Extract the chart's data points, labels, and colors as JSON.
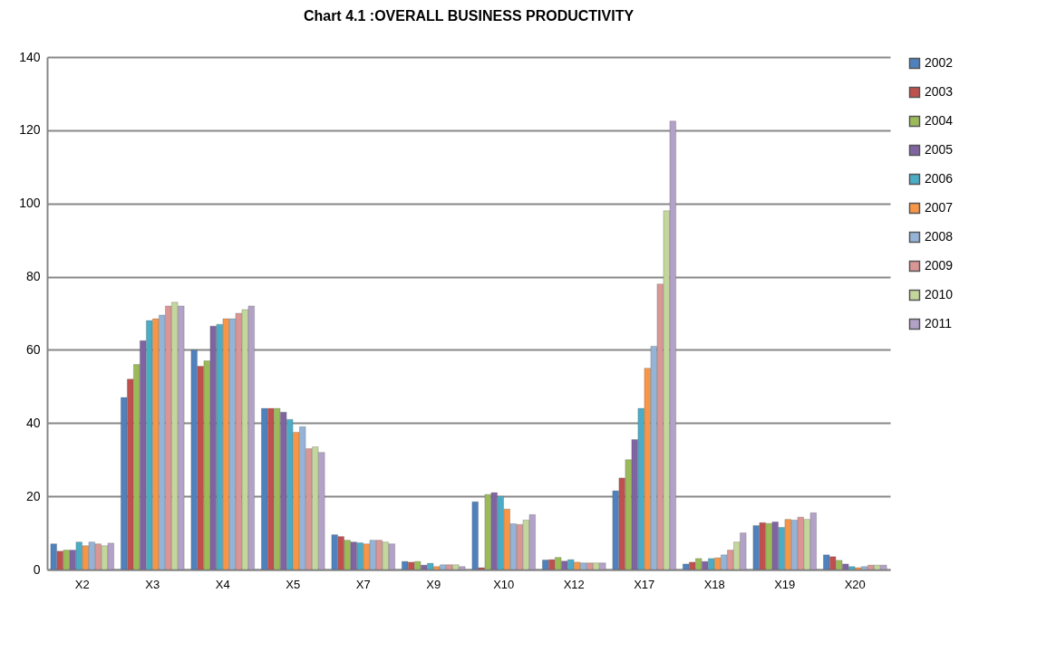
{
  "chart_data": {
    "type": "bar",
    "title": "Chart 4.1 :OVERALL BUSINESS PRODUCTIVITY",
    "categories": [
      "X2",
      "X3",
      "X4",
      "X5",
      "X7",
      "X9",
      "X10",
      "X12",
      "X17",
      "X18",
      "X19",
      "X20"
    ],
    "ylim": [
      0,
      140
    ],
    "yticks": [
      0,
      20,
      40,
      60,
      80,
      100,
      120,
      140
    ],
    "grid": "y",
    "legend": "right",
    "series": [
      {
        "name": "2002",
        "color": "#4f81bd",
        "values": [
          7,
          47,
          60,
          44,
          9.5,
          2.2,
          18.5,
          2.6,
          21.5,
          1.5,
          12,
          4
        ]
      },
      {
        "name": "2003",
        "color": "#c0504d",
        "values": [
          5,
          52,
          55.5,
          44,
          9,
          2,
          0.5,
          2.7,
          25,
          2,
          12.8,
          3.5
        ]
      },
      {
        "name": "2004",
        "color": "#9bbb59",
        "values": [
          5.3,
          56,
          57,
          44,
          8,
          2.2,
          20.5,
          3.3,
          30,
          3,
          12.6,
          2.5
        ]
      },
      {
        "name": "2005",
        "color": "#8064a2",
        "values": [
          5.3,
          62.5,
          66.5,
          43,
          7.5,
          1.2,
          21,
          2.3,
          35.5,
          2.2,
          13,
          1.5
        ]
      },
      {
        "name": "2006",
        "color": "#4bacc6",
        "values": [
          7.5,
          68,
          67,
          41,
          7.3,
          1.7,
          20,
          2.7,
          44,
          3,
          11.5,
          0.8
        ]
      },
      {
        "name": "2007",
        "color": "#f79646",
        "values": [
          6.5,
          68.5,
          68.5,
          37.5,
          7,
          0.8,
          16.5,
          2,
          55,
          3.2,
          13.7,
          0.5
        ]
      },
      {
        "name": "2008",
        "color": "#95b3d7",
        "values": [
          7.5,
          69.5,
          68.5,
          39,
          8,
          1.3,
          12.5,
          1.8,
          61,
          4,
          13.5,
          0.8
        ]
      },
      {
        "name": "2009",
        "color": "#d99694",
        "values": [
          7,
          72,
          70,
          33,
          8,
          1.3,
          12.3,
          1.8,
          78,
          5.3,
          14.3,
          1.2
        ]
      },
      {
        "name": "2010",
        "color": "#c3d69b",
        "values": [
          6.5,
          73,
          71,
          33.5,
          7.5,
          1.3,
          13.5,
          1.8,
          98,
          7.5,
          13.7,
          1.2
        ]
      },
      {
        "name": "2011",
        "color": "#b3a2c7",
        "values": [
          7.2,
          72,
          72,
          32,
          7,
          0.8,
          15,
          1.8,
          122.5,
          10,
          15.5,
          1.2
        ]
      }
    ]
  }
}
